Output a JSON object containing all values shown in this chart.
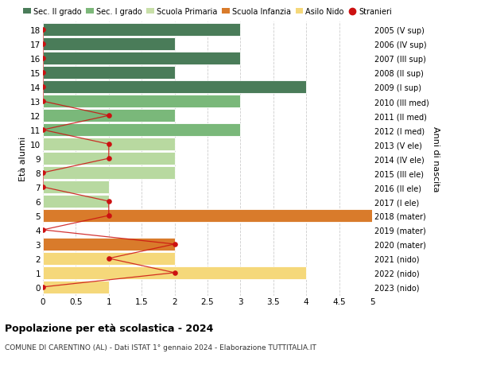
{
  "ages": [
    18,
    17,
    16,
    15,
    14,
    13,
    12,
    11,
    10,
    9,
    8,
    7,
    6,
    5,
    4,
    3,
    2,
    1,
    0
  ],
  "right_labels": [
    "2005 (V sup)",
    "2006 (IV sup)",
    "2007 (III sup)",
    "2008 (II sup)",
    "2009 (I sup)",
    "2010 (III med)",
    "2011 (II med)",
    "2012 (I med)",
    "2013 (V ele)",
    "2014 (IV ele)",
    "2015 (III ele)",
    "2016 (II ele)",
    "2017 (I ele)",
    "2018 (mater)",
    "2019 (mater)",
    "2020 (mater)",
    "2021 (nido)",
    "2022 (nido)",
    "2023 (nido)"
  ],
  "bar_values": [
    3,
    2,
    3,
    2,
    4,
    3,
    2,
    3,
    2,
    2,
    2,
    1,
    1,
    5,
    0,
    2,
    2,
    4,
    1
  ],
  "bar_colors": [
    "#4a7c59",
    "#4a7c59",
    "#4a7c59",
    "#4a7c59",
    "#4a7c59",
    "#7ab87a",
    "#7ab87a",
    "#7ab87a",
    "#b8d9a0",
    "#b8d9a0",
    "#b8d9a0",
    "#b8d9a0",
    "#b8d9a0",
    "#d97b2b",
    "#d97b2b",
    "#d97b2b",
    "#f5d87a",
    "#f5d87a",
    "#f5d87a"
  ],
  "stranieri_x": [
    0,
    0,
    0,
    0,
    0,
    0,
    1,
    0,
    1,
    1,
    0,
    0,
    1,
    1,
    0,
    2,
    1,
    2,
    0
  ],
  "legend_labels": [
    "Sec. II grado",
    "Sec. I grado",
    "Scuola Primaria",
    "Scuola Infanzia",
    "Asilo Nido",
    "Stranieri"
  ],
  "legend_colors": [
    "#4a7c59",
    "#7db87a",
    "#c8dfa8",
    "#d97b2b",
    "#f5d87a",
    "#cc1111"
  ],
  "title": "Popolazione per età scolastica - 2024",
  "subtitle": "COMUNE DI CARENTINO (AL) - Dati ISTAT 1° gennaio 2024 - Elaborazione TUTTITALIA.IT",
  "ylabel_left": "Età alunni",
  "ylabel_right": "Anni di nascita",
  "xlim": [
    0,
    5.0
  ],
  "xticks": [
    0,
    0.5,
    1.0,
    1.5,
    2.0,
    2.5,
    3.0,
    3.5,
    4.0,
    4.5,
    5.0
  ],
  "bar_height": 0.88,
  "background_color": "#ffffff",
  "grid_color": "#cccccc"
}
